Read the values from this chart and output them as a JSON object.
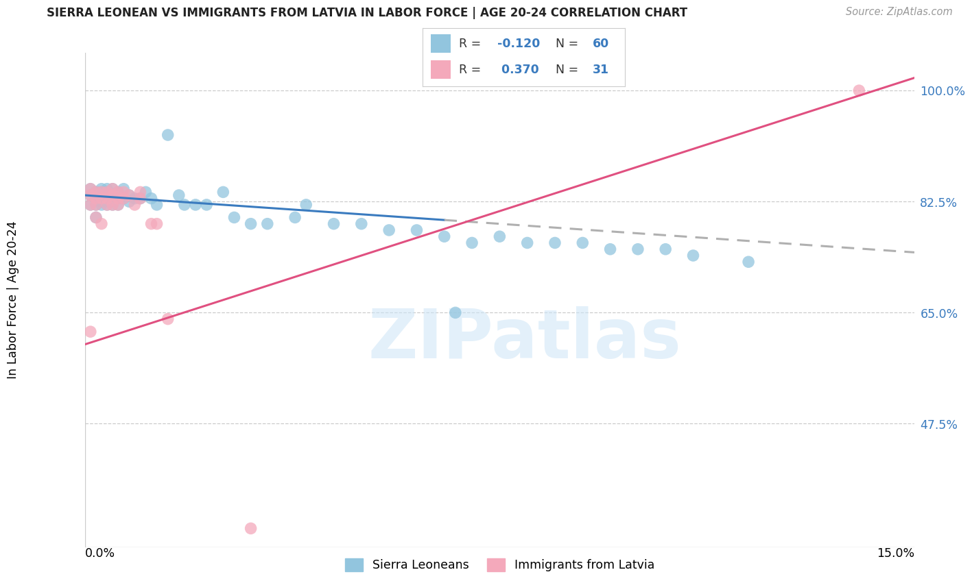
{
  "title": "SIERRA LEONEAN VS IMMIGRANTS FROM LATVIA IN LABOR FORCE | AGE 20-24 CORRELATION CHART",
  "source": "Source: ZipAtlas.com",
  "ylabel": "In Labor Force | Age 20-24",
  "y_ticks": [
    "100.0%",
    "82.5%",
    "65.0%",
    "47.5%"
  ],
  "y_tick_vals": [
    1.0,
    0.825,
    0.65,
    0.475
  ],
  "x_range": [
    0.0,
    0.15
  ],
  "y_range": [
    0.28,
    1.06
  ],
  "watermark": "ZIPatlas",
  "blue_R": "-0.120",
  "blue_N": "60",
  "pink_R": "0.370",
  "pink_N": "31",
  "blue_color": "#92c5de",
  "pink_color": "#f4a9bb",
  "blue_line_color": "#3a7bbf",
  "pink_line_color": "#e05080",
  "dashed_color": "#b0b0b0",
  "blue_points_x": [
    0.001,
    0.001,
    0.001,
    0.002,
    0.002,
    0.002,
    0.002,
    0.002,
    0.003,
    0.003,
    0.003,
    0.003,
    0.003,
    0.003,
    0.004,
    0.004,
    0.004,
    0.004,
    0.005,
    0.005,
    0.005,
    0.006,
    0.006,
    0.006,
    0.007,
    0.007,
    0.008,
    0.008,
    0.009,
    0.01,
    0.011,
    0.012,
    0.013,
    0.015,
    0.017,
    0.018,
    0.02,
    0.022,
    0.025,
    0.027,
    0.03,
    0.033,
    0.038,
    0.04,
    0.045,
    0.05,
    0.055,
    0.06,
    0.065,
    0.067,
    0.07,
    0.075,
    0.08,
    0.085,
    0.09,
    0.095,
    0.1,
    0.105,
    0.11,
    0.12
  ],
  "blue_points_y": [
    0.835,
    0.845,
    0.82,
    0.84,
    0.84,
    0.83,
    0.82,
    0.8,
    0.845,
    0.84,
    0.835,
    0.83,
    0.825,
    0.82,
    0.845,
    0.84,
    0.83,
    0.82,
    0.845,
    0.835,
    0.82,
    0.84,
    0.83,
    0.82,
    0.845,
    0.83,
    0.835,
    0.825,
    0.83,
    0.83,
    0.84,
    0.83,
    0.82,
    0.93,
    0.835,
    0.82,
    0.82,
    0.82,
    0.84,
    0.8,
    0.79,
    0.79,
    0.8,
    0.82,
    0.79,
    0.79,
    0.78,
    0.78,
    0.77,
    0.65,
    0.76,
    0.77,
    0.76,
    0.76,
    0.76,
    0.75,
    0.75,
    0.75,
    0.74,
    0.73
  ],
  "pink_points_x": [
    0.001,
    0.001,
    0.001,
    0.001,
    0.002,
    0.002,
    0.002,
    0.002,
    0.003,
    0.003,
    0.003,
    0.004,
    0.004,
    0.004,
    0.005,
    0.005,
    0.005,
    0.006,
    0.006,
    0.006,
    0.007,
    0.007,
    0.008,
    0.009,
    0.01,
    0.01,
    0.012,
    0.013,
    0.015,
    0.03,
    0.14
  ],
  "pink_points_y": [
    0.845,
    0.835,
    0.82,
    0.62,
    0.84,
    0.83,
    0.82,
    0.8,
    0.84,
    0.83,
    0.79,
    0.84,
    0.83,
    0.82,
    0.845,
    0.835,
    0.82,
    0.84,
    0.83,
    0.82,
    0.84,
    0.83,
    0.835,
    0.82,
    0.84,
    0.83,
    0.79,
    0.79,
    0.64,
    0.31,
    1.0
  ],
  "blue_line_x0": 0.0,
  "blue_line_x_solid_end": 0.065,
  "blue_line_x_dash_end": 0.15,
  "blue_line_y_at_0": 0.835,
  "blue_line_y_at_15": 0.745,
  "pink_line_x0": 0.0,
  "pink_line_x1": 0.15,
  "pink_line_y0": 0.6,
  "pink_line_y1": 1.02
}
